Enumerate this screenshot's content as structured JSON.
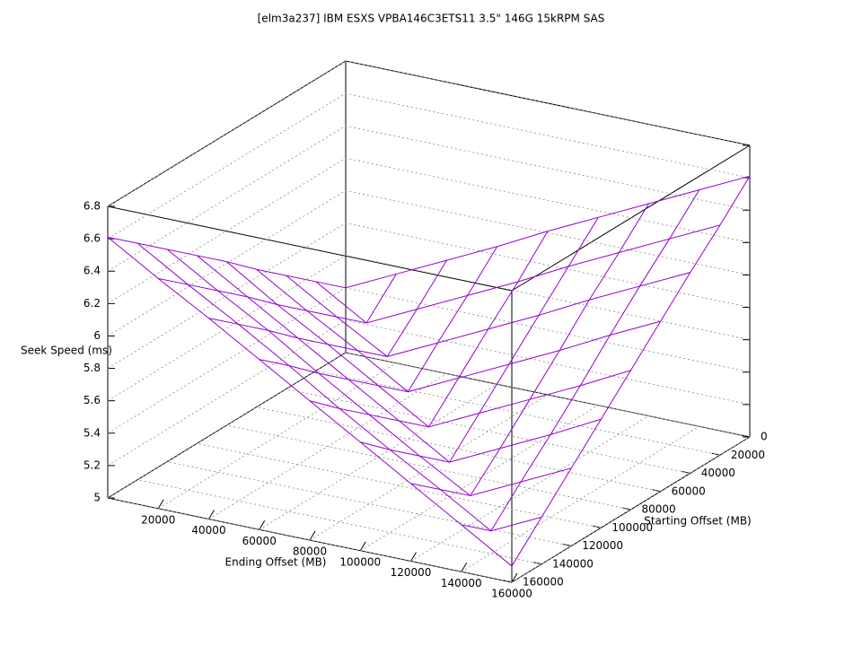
{
  "chart_data": {
    "type": "surface",
    "title": "[elm3a237] IBM ESXS VPBA146C3ETS11 3.5\" 146G 15kRPM SAS",
    "xlabel": "Ending Offset (MB)",
    "ylabel": "Starting Offset (MB)",
    "zlabel": "Seek Speed (ms)",
    "x": [
      0,
      20000,
      40000,
      60000,
      80000,
      100000,
      120000,
      140000,
      160000
    ],
    "y": [
      0,
      20000,
      40000,
      60000,
      80000,
      100000,
      120000,
      140000,
      160000
    ],
    "values": [
      [
        5.4,
        5.55,
        5.7,
        5.85,
        6.01,
        6.16,
        6.31,
        6.46,
        6.61
      ],
      [
        5.55,
        5.36,
        5.51,
        5.66,
        5.81,
        5.97,
        6.12,
        6.27,
        6.42
      ],
      [
        5.7,
        5.51,
        5.33,
        5.48,
        5.63,
        5.78,
        5.94,
        6.09,
        6.24
      ],
      [
        5.85,
        5.66,
        5.48,
        5.29,
        5.44,
        5.59,
        5.74,
        5.9,
        6.05
      ],
      [
        6.01,
        5.81,
        5.63,
        5.44,
        5.25,
        5.4,
        5.55,
        5.7,
        5.86
      ],
      [
        6.16,
        5.97,
        5.78,
        5.59,
        5.4,
        5.21,
        5.36,
        5.51,
        5.67
      ],
      [
        6.31,
        6.12,
        5.94,
        5.74,
        5.55,
        5.36,
        5.18,
        5.33,
        5.48
      ],
      [
        6.46,
        6.27,
        6.09,
        5.9,
        5.7,
        5.51,
        5.33,
        5.14,
        5.29
      ],
      [
        6.61,
        6.42,
        6.24,
        6.05,
        5.86,
        5.67,
        5.48,
        5.29,
        5.1
      ]
    ],
    "color": "#9400d3",
    "xlim": [
      0,
      160000
    ],
    "ylim": [
      0,
      160000
    ],
    "zlim": [
      5,
      6.8
    ],
    "xticks": [
      20000,
      40000,
      60000,
      80000,
      100000,
      120000,
      140000,
      160000
    ],
    "yticks": [
      0,
      20000,
      40000,
      60000,
      80000,
      100000,
      120000,
      140000,
      160000
    ],
    "zticks": [
      5,
      5.2,
      5.4,
      5.6,
      5.8,
      6,
      6.2,
      6.4,
      6.6,
      6.8
    ],
    "grid": true
  }
}
